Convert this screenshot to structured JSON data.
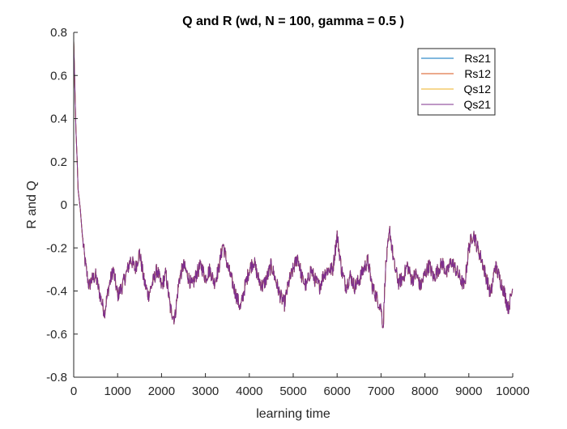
{
  "chart_data": {
    "type": "line",
    "title": "Q and R (wd, N = 100, gamma = 0.5 )",
    "xlabel": "learning time",
    "ylabel": "R and Q",
    "xlim": [
      0,
      10000
    ],
    "ylim": [
      -0.8,
      0.8
    ],
    "xticks": [
      0,
      1000,
      2000,
      3000,
      4000,
      5000,
      6000,
      7000,
      8000,
      9000,
      10000
    ],
    "xtick_labels": [
      "0",
      "1000",
      "2000",
      "3000",
      "4000",
      "5000",
      "6000",
      "7000",
      "8000",
      "9000",
      "10000"
    ],
    "yticks": [
      -0.8,
      -0.6,
      -0.4,
      -0.2,
      0,
      0.2,
      0.4,
      0.6,
      0.8
    ],
    "ytick_labels": [
      "-0.8",
      "-0.6",
      "-0.4",
      "-0.2",
      "0",
      "0.2",
      "0.4",
      "0.6",
      "0.8"
    ],
    "grid": false,
    "legend_position": "top-right",
    "x": [
      0,
      20,
      50,
      80,
      100,
      150,
      200,
      250,
      300,
      350,
      400,
      500,
      600,
      700,
      800,
      900,
      1000,
      1100,
      1200,
      1300,
      1400,
      1500,
      1600,
      1700,
      1800,
      1900,
      2000,
      2100,
      2200,
      2300,
      2400,
      2500,
      2600,
      2700,
      2800,
      2900,
      3000,
      3100,
      3200,
      3300,
      3400,
      3500,
      3600,
      3700,
      3800,
      3900,
      4000,
      4100,
      4200,
      4300,
      4400,
      4500,
      4600,
      4700,
      4800,
      4900,
      5000,
      5100,
      5200,
      5300,
      5400,
      5500,
      5600,
      5700,
      5800,
      5900,
      6000,
      6100,
      6200,
      6300,
      6400,
      6500,
      6600,
      6700,
      6800,
      6900,
      7000,
      7050,
      7100,
      7200,
      7300,
      7400,
      7500,
      7600,
      7700,
      7800,
      7900,
      8000,
      8100,
      8200,
      8300,
      8400,
      8500,
      8600,
      8700,
      8800,
      8900,
      9000,
      9100,
      9200,
      9300,
      9400,
      9500,
      9600,
      9700,
      9800,
      9900,
      10000
    ],
    "series": [
      {
        "name": "Rs21",
        "color": "#0072BD",
        "values": [
          0.76,
          0.6,
          0.35,
          0.2,
          0.07,
          -0.02,
          -0.15,
          -0.25,
          -0.32,
          -0.38,
          -0.35,
          -0.33,
          -0.42,
          -0.5,
          -0.38,
          -0.3,
          -0.42,
          -0.38,
          -0.32,
          -0.25,
          -0.3,
          -0.22,
          -0.35,
          -0.42,
          -0.36,
          -0.3,
          -0.38,
          -0.32,
          -0.48,
          -0.53,
          -0.35,
          -0.28,
          -0.33,
          -0.38,
          -0.32,
          -0.28,
          -0.34,
          -0.3,
          -0.36,
          -0.3,
          -0.18,
          -0.28,
          -0.35,
          -0.42,
          -0.48,
          -0.38,
          -0.3,
          -0.26,
          -0.34,
          -0.38,
          -0.34,
          -0.28,
          -0.35,
          -0.42,
          -0.46,
          -0.36,
          -0.3,
          -0.24,
          -0.34,
          -0.38,
          -0.3,
          -0.35,
          -0.38,
          -0.32,
          -0.3,
          -0.3,
          -0.14,
          -0.3,
          -0.38,
          -0.33,
          -0.38,
          -0.35,
          -0.3,
          -0.26,
          -0.38,
          -0.43,
          -0.48,
          -0.57,
          -0.3,
          -0.12,
          -0.28,
          -0.36,
          -0.34,
          -0.28,
          -0.35,
          -0.32,
          -0.38,
          -0.32,
          -0.28,
          -0.34,
          -0.3,
          -0.27,
          -0.32,
          -0.26,
          -0.3,
          -0.34,
          -0.38,
          -0.2,
          -0.13,
          -0.2,
          -0.26,
          -0.34,
          -0.42,
          -0.28,
          -0.34,
          -0.4,
          -0.48,
          -0.39
        ]
      },
      {
        "name": "Rs12",
        "color": "#D95319",
        "values": [
          0.76,
          0.6,
          0.35,
          0.2,
          0.07,
          -0.02,
          -0.15,
          -0.25,
          -0.32,
          -0.38,
          -0.35,
          -0.33,
          -0.42,
          -0.5,
          -0.38,
          -0.3,
          -0.42,
          -0.38,
          -0.32,
          -0.25,
          -0.3,
          -0.22,
          -0.35,
          -0.42,
          -0.36,
          -0.3,
          -0.38,
          -0.32,
          -0.48,
          -0.53,
          -0.35,
          -0.28,
          -0.33,
          -0.38,
          -0.32,
          -0.28,
          -0.34,
          -0.3,
          -0.36,
          -0.3,
          -0.18,
          -0.28,
          -0.35,
          -0.42,
          -0.48,
          -0.38,
          -0.3,
          -0.26,
          -0.34,
          -0.38,
          -0.34,
          -0.28,
          -0.35,
          -0.42,
          -0.46,
          -0.36,
          -0.3,
          -0.24,
          -0.34,
          -0.38,
          -0.3,
          -0.35,
          -0.38,
          -0.32,
          -0.3,
          -0.3,
          -0.14,
          -0.3,
          -0.38,
          -0.33,
          -0.38,
          -0.35,
          -0.3,
          -0.26,
          -0.38,
          -0.43,
          -0.48,
          -0.57,
          -0.3,
          -0.12,
          -0.28,
          -0.36,
          -0.34,
          -0.28,
          -0.35,
          -0.32,
          -0.38,
          -0.32,
          -0.28,
          -0.34,
          -0.3,
          -0.27,
          -0.32,
          -0.26,
          -0.3,
          -0.34,
          -0.38,
          -0.2,
          -0.13,
          -0.2,
          -0.26,
          -0.34,
          -0.42,
          -0.28,
          -0.34,
          -0.4,
          -0.48,
          -0.39
        ]
      },
      {
        "name": "Qs12",
        "color": "#EDB120",
        "values": [
          0.76,
          0.6,
          0.35,
          0.2,
          0.07,
          -0.02,
          -0.15,
          -0.25,
          -0.32,
          -0.38,
          -0.35,
          -0.33,
          -0.42,
          -0.5,
          -0.38,
          -0.3,
          -0.42,
          -0.38,
          -0.32,
          -0.25,
          -0.3,
          -0.22,
          -0.35,
          -0.42,
          -0.36,
          -0.3,
          -0.38,
          -0.32,
          -0.48,
          -0.53,
          -0.35,
          -0.28,
          -0.33,
          -0.38,
          -0.32,
          -0.28,
          -0.34,
          -0.3,
          -0.36,
          -0.3,
          -0.18,
          -0.28,
          -0.35,
          -0.42,
          -0.48,
          -0.38,
          -0.3,
          -0.26,
          -0.34,
          -0.38,
          -0.34,
          -0.28,
          -0.35,
          -0.42,
          -0.46,
          -0.36,
          -0.3,
          -0.24,
          -0.34,
          -0.38,
          -0.3,
          -0.35,
          -0.38,
          -0.32,
          -0.3,
          -0.3,
          -0.14,
          -0.3,
          -0.38,
          -0.33,
          -0.38,
          -0.35,
          -0.3,
          -0.26,
          -0.38,
          -0.43,
          -0.48,
          -0.57,
          -0.3,
          -0.12,
          -0.28,
          -0.36,
          -0.34,
          -0.28,
          -0.35,
          -0.32,
          -0.38,
          -0.32,
          -0.28,
          -0.34,
          -0.3,
          -0.27,
          -0.32,
          -0.26,
          -0.3,
          -0.34,
          -0.38,
          -0.2,
          -0.13,
          -0.2,
          -0.26,
          -0.34,
          -0.42,
          -0.28,
          -0.34,
          -0.4,
          -0.48,
          -0.39
        ]
      },
      {
        "name": "Qs21",
        "color": "#7E2F8E",
        "values": [
          0.76,
          0.6,
          0.35,
          0.2,
          0.07,
          -0.02,
          -0.15,
          -0.25,
          -0.32,
          -0.38,
          -0.35,
          -0.33,
          -0.42,
          -0.5,
          -0.38,
          -0.3,
          -0.42,
          -0.38,
          -0.32,
          -0.25,
          -0.3,
          -0.22,
          -0.35,
          -0.42,
          -0.36,
          -0.3,
          -0.38,
          -0.32,
          -0.48,
          -0.53,
          -0.35,
          -0.28,
          -0.33,
          -0.38,
          -0.32,
          -0.28,
          -0.34,
          -0.3,
          -0.36,
          -0.3,
          -0.18,
          -0.28,
          -0.35,
          -0.42,
          -0.48,
          -0.38,
          -0.3,
          -0.26,
          -0.34,
          -0.38,
          -0.34,
          -0.28,
          -0.35,
          -0.42,
          -0.46,
          -0.36,
          -0.3,
          -0.24,
          -0.34,
          -0.38,
          -0.3,
          -0.35,
          -0.38,
          -0.32,
          -0.3,
          -0.3,
          -0.14,
          -0.3,
          -0.38,
          -0.33,
          -0.38,
          -0.35,
          -0.3,
          -0.26,
          -0.38,
          -0.43,
          -0.48,
          -0.57,
          -0.3,
          -0.12,
          -0.28,
          -0.36,
          -0.34,
          -0.28,
          -0.35,
          -0.32,
          -0.38,
          -0.32,
          -0.28,
          -0.34,
          -0.3,
          -0.27,
          -0.32,
          -0.26,
          -0.3,
          -0.34,
          -0.38,
          -0.2,
          -0.13,
          -0.2,
          -0.26,
          -0.34,
          -0.42,
          -0.28,
          -0.34,
          -0.4,
          -0.48,
          -0.39
        ]
      }
    ]
  }
}
